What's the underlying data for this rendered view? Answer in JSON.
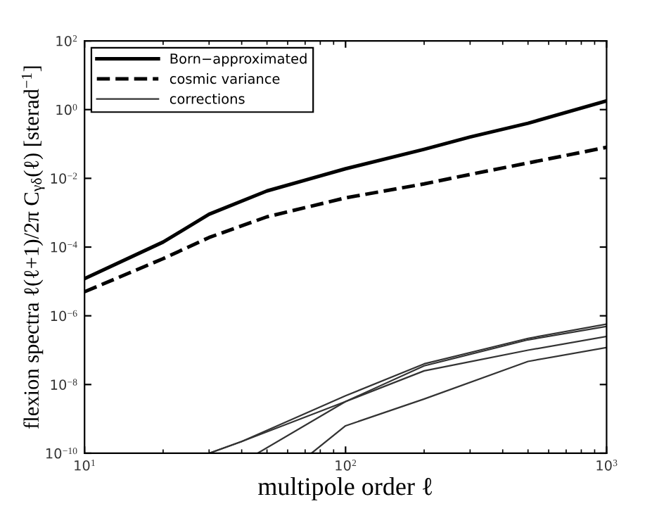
{
  "chart_data": {
    "type": "line",
    "xlabel": "multipole order ℓ",
    "ylabel": "flexion spectra ℓ(ℓ+1)/2π C$_{γδ}$(ℓ) [sterad$^{−1}$]",
    "log": "xy",
    "xlim": [
      10,
      1000
    ],
    "xticks": [
      {
        "value": 10,
        "label": "10$^{1}$"
      },
      {
        "value": 100,
        "label": "10$^{2}$"
      },
      {
        "value": 1000,
        "label": "10$^{3}$"
      }
    ],
    "ylim": [
      1e-10,
      100
    ],
    "yticks": [
      {
        "value": 1e-10,
        "label": "10$^{−10}$"
      },
      {
        "value": 1e-08,
        "label": "10$^{−8}$"
      },
      {
        "value": 1e-06,
        "label": "10$^{−6}$"
      },
      {
        "value": 0.0001,
        "label": "10$^{−4}$"
      },
      {
        "value": 0.01,
        "label": "10$^{−2}$"
      },
      {
        "value": 1,
        "label": "10$^{0}$"
      },
      {
        "value": 100,
        "label": "10$^{2}$"
      }
    ],
    "grid": false,
    "legend": "top left",
    "series": [
      {
        "name": "Born−approximated",
        "color": "#000000",
        "line_style": "solid",
        "x": [
          10,
          20,
          30,
          50,
          100,
          200,
          300,
          500,
          1000
        ],
        "values": [
          1.2e-05,
          0.00014,
          0.0009,
          0.0043,
          0.019,
          0.07,
          0.16,
          0.4,
          1.8
        ]
      },
      {
        "name": "cosmic variance",
        "color": "#000000",
        "line_style": "dashed",
        "x": [
          10,
          20,
          30,
          50,
          100,
          200,
          300,
          500,
          1000
        ],
        "values": [
          5e-06,
          4.6e-05,
          0.00019,
          0.00076,
          0.0027,
          0.0069,
          0.013,
          0.028,
          0.08
        ]
      },
      {
        "name": "corrections",
        "color": "#333333",
        "line_style": "solid",
        "x": [
          30,
          40,
          100,
          200,
          500,
          1000
        ],
        "values": [
          1e-10,
          2.2e-10,
          4.7e-09,
          4e-08,
          2.2e-07,
          5.7e-07
        ]
      },
      {
        "color": "#333333",
        "line_style": "solid",
        "x": [
          30,
          40,
          100,
          200,
          500,
          1000
        ],
        "values": [
          1e-10,
          2.2e-10,
          3.2e-09,
          3.5e-08,
          2e-07,
          4.9e-07
        ]
      },
      {
        "color": "#333333",
        "line_style": "solid",
        "x": [
          46,
          100,
          200,
          500,
          1000
        ],
        "values": [
          1e-10,
          3.2e-09,
          2.5e-08,
          1e-07,
          2.5e-07
        ]
      },
      {
        "color": "#333333",
        "line_style": "solid",
        "x": [
          74,
          100,
          200,
          500,
          1000
        ],
        "values": [
          1e-10,
          6.3e-10,
          3.8e-09,
          4.7e-08,
          1.2e-07
        ]
      }
    ]
  }
}
